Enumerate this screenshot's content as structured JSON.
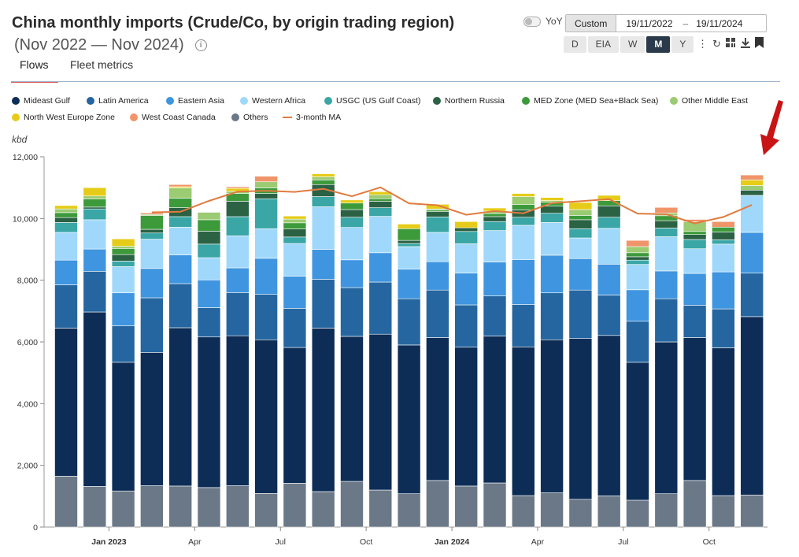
{
  "header": {
    "title": "China monthly imports (Crude/Co, by origin trading region)",
    "subtitle": "(Nov 2022 — Nov 2024)",
    "info_icon": "info-icon"
  },
  "tabs": [
    {
      "label": "Flows",
      "active": true
    },
    {
      "label": "Fleet metrics",
      "active": false
    }
  ],
  "controls": {
    "yoy_label": "YoY",
    "custom_label": "Custom",
    "date_from": "19/11/2022",
    "date_separator": "–",
    "date_to": "19/11/2024",
    "periods": [
      {
        "label": "D",
        "active": false
      },
      {
        "label": "EIA",
        "active": false
      },
      {
        "label": "W",
        "active": false
      },
      {
        "label": "M",
        "active": true
      },
      {
        "label": "Y",
        "active": false
      }
    ],
    "icons": [
      "more-vert-icon",
      "refresh-icon",
      "grid-settings-icon",
      "download-icon",
      "bookmark-icon"
    ]
  },
  "colors": {
    "Mideast Gulf": "#0d2d57",
    "Latin America": "#2566a0",
    "Eastern Asia": "#3f95df",
    "Western Africa": "#a0d8fb",
    "USGC (US Gulf Coast)": "#3aa6a6",
    "Northern Russia": "#2b6244",
    "MED Zone (MED Sea+Black Sea)": "#3d9a3b",
    "Other Middle East": "#9bcb72",
    "North West Europe Zone": "#e6cc18",
    "West Coast Canada": "#f0946a",
    "Others": "#6b7887",
    "3-month MA": "#e07b3f",
    "arrow": "#c81414"
  },
  "chart_data": {
    "type": "bar",
    "stacked": true,
    "ylabel": "kbd",
    "ylim": [
      0,
      12000
    ],
    "yticks": [
      0,
      2000,
      4000,
      6000,
      8000,
      10000,
      12000
    ],
    "grid": false,
    "legend_position": "top",
    "categories": [
      "Nov 2022",
      "Dec 2022",
      "Jan 2023",
      "Feb 2023",
      "Mar 2023",
      "Apr 2023",
      "May 2023",
      "Jun 2023",
      "Jul 2023",
      "Aug 2023",
      "Sep 2023",
      "Oct 2023",
      "Nov 2023",
      "Dec 2023",
      "Jan 2024",
      "Feb 2024",
      "Mar 2024",
      "Apr 2024",
      "May 2024",
      "Jun 2024",
      "Jul 2024",
      "Aug 2024",
      "Sep 2024",
      "Oct 2024",
      "Nov 2024"
    ],
    "x_tick_labels": [
      {
        "category": "Jan 2023",
        "label": "Jan 2023",
        "bold": true
      },
      {
        "category": "Apr 2023",
        "label": "Apr",
        "bold": false
      },
      {
        "category": "Jul 2023",
        "label": "Jul",
        "bold": false
      },
      {
        "category": "Oct 2023",
        "label": "Oct",
        "bold": false
      },
      {
        "category": "Jan 2024",
        "label": "Jan 2024",
        "bold": true
      },
      {
        "category": "Apr 2024",
        "label": "Apr",
        "bold": false
      },
      {
        "category": "Jul 2024",
        "label": "Jul",
        "bold": false
      },
      {
        "category": "Oct 2024",
        "label": "Oct",
        "bold": false
      }
    ],
    "series": [
      {
        "name": "Others",
        "values": [
          1650,
          1320,
          1170,
          1340,
          1330,
          1280,
          1340,
          1090,
          1420,
          1150,
          1480,
          1200,
          1080,
          1510,
          1330,
          1430,
          1020,
          1110,
          900,
          1010,
          870,
          1080,
          1510,
          1020,
          1040
        ]
      },
      {
        "name": "Mideast Gulf",
        "values": [
          4800,
          5650,
          4170,
          4320,
          5130,
          4880,
          4860,
          4980,
          4400,
          5300,
          4700,
          5050,
          4820,
          4630,
          4500,
          4760,
          4820,
          4960,
          5210,
          5200,
          4470,
          4920,
          4630,
          4790,
          5780
        ]
      },
      {
        "name": "Latin America",
        "values": [
          1400,
          1320,
          1180,
          1770,
          1430,
          950,
          1400,
          1470,
          1270,
          1580,
          1580,
          1690,
          1500,
          1540,
          1370,
          1300,
          1370,
          1520,
          1570,
          1310,
          1330,
          1400,
          1050,
          1260,
          1410
        ]
      },
      {
        "name": "Eastern Asia",
        "values": [
          800,
          720,
          1070,
          950,
          930,
          900,
          800,
          1170,
          1040,
          970,
          900,
          950,
          960,
          920,
          1030,
          1100,
          1460,
          1220,
          1020,
          1000,
          1020,
          900,
          1030,
          1200,
          1320
        ]
      },
      {
        "name": "Western Africa",
        "values": [
          900,
          950,
          850,
          950,
          900,
          720,
          1040,
          960,
          1060,
          1380,
          1050,
          1180,
          730,
          950,
          950,
          1020,
          1110,
          1060,
          670,
          1160,
          820,
          1110,
          800,
          900,
          1200
        ]
      },
      {
        "name": "USGC (US Gulf Coast)",
        "values": [
          320,
          350,
          180,
          200,
          340,
          440,
          620,
          970,
          210,
          330,
          330,
          280,
          100,
          500,
          400,
          290,
          260,
          300,
          300,
          360,
          140,
          280,
          300,
          140,
          0
        ]
      },
      {
        "name": "Northern Russia",
        "values": [
          160,
          60,
          210,
          120,
          290,
          420,
          500,
          170,
          260,
          390,
          250,
          210,
          100,
          170,
          120,
          160,
          240,
          230,
          290,
          370,
          110,
          240,
          160,
          250,
          170
        ]
      },
      {
        "name": "MED Zone (MED Sea+Black Sea)",
        "values": [
          160,
          260,
          200,
          450,
          310,
          370,
          250,
          180,
          200,
          150,
          210,
          80,
          380,
          50,
          0,
          100,
          170,
          130,
          140,
          170,
          130,
          160,
          100,
          160,
          0
        ]
      },
      {
        "name": "Other Middle East",
        "values": [
          120,
          100,
          70,
          30,
          330,
          240,
          70,
          200,
          120,
          100,
          0,
          130,
          0,
          40,
          0,
          80,
          260,
          50,
          190,
          0,
          200,
          90,
          310,
          0,
          150
        ]
      },
      {
        "name": "North West Europe Zone",
        "values": [
          110,
          270,
          240,
          0,
          40,
          0,
          100,
          0,
          100,
          100,
          100,
          100,
          150,
          150,
          200,
          100,
          100,
          100,
          230,
          170,
          0,
          0,
          0,
          0,
          180
        ]
      },
      {
        "name": "West Coast Canada",
        "values": [
          0,
          0,
          0,
          50,
          70,
          0,
          50,
          180,
          0,
          0,
          0,
          0,
          0,
          0,
          0,
          0,
          0,
          0,
          0,
          0,
          200,
          180,
          80,
          180,
          160
        ]
      }
    ],
    "line_series": {
      "name": "3-month MA",
      "values": [
        null,
        null,
        null,
        10200,
        10220,
        10570,
        10870,
        10900,
        10860,
        10960,
        10720,
        11010,
        10490,
        10430,
        10120,
        10240,
        10170,
        10500,
        10560,
        10630,
        10160,
        10140,
        9840,
        10050,
        10440
      ]
    },
    "annotation": {
      "type": "arrow",
      "target": "Nov 2024",
      "direction": "down"
    }
  }
}
